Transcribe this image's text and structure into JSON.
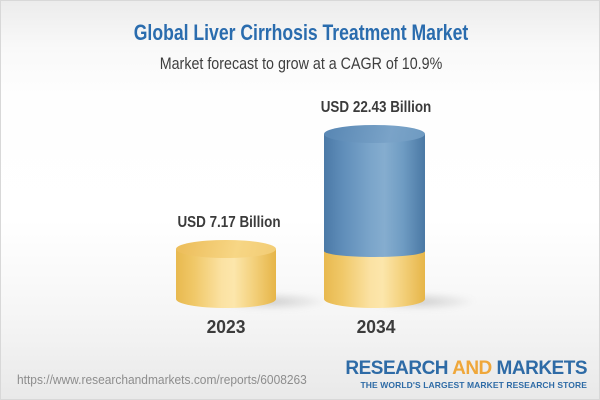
{
  "header": {
    "title": "Global Liver Cirrhosis Treatment Market",
    "subtitle": "Market forecast to grow at a CAGR of 10.9%"
  },
  "chart_data": {
    "type": "bar",
    "variant": "3d-stacked-cylinders",
    "categories": [
      "2023",
      "2034"
    ],
    "values": [
      7.17,
      22.43
    ],
    "unit": "USD Billion",
    "value_labels": [
      "USD 7.17 Billion",
      "USD 22.43 Billion"
    ],
    "cagr": "10.9%",
    "title": "Global Liver Cirrhosis Treatment Market",
    "subtitle": "Market forecast to grow at a CAGR of 10.9%",
    "xlabel": "",
    "ylabel": "",
    "legend": "none",
    "grid": false,
    "colors": {
      "base_segment": "#F2C96B",
      "growth_segment": "#5C8CB8"
    },
    "note": "2034 cylinder is stacked: yellow base equals 2023 value, blue top is forecast growth"
  },
  "bars": [
    {
      "year": "2023",
      "value_label": "USD 7.17 Billion"
    },
    {
      "year": "2034",
      "value_label": "USD 22.43 Billion"
    }
  ],
  "footer": {
    "url": "https://www.researchandmarkets.com/reports/6008263",
    "logo": {
      "word1": "RESEARCH",
      "word2": "AND",
      "word3": "MARKETS",
      "tagline": "THE WORLD'S LARGEST MARKET RESEARCH STORE",
      "blue": "#2E6BA6",
      "orange": "#EFA73A"
    }
  },
  "colors": {
    "title_blue": "#2A6CAE",
    "text_dark": "#3B3B3B",
    "url_gray": "#8D8D8D"
  }
}
